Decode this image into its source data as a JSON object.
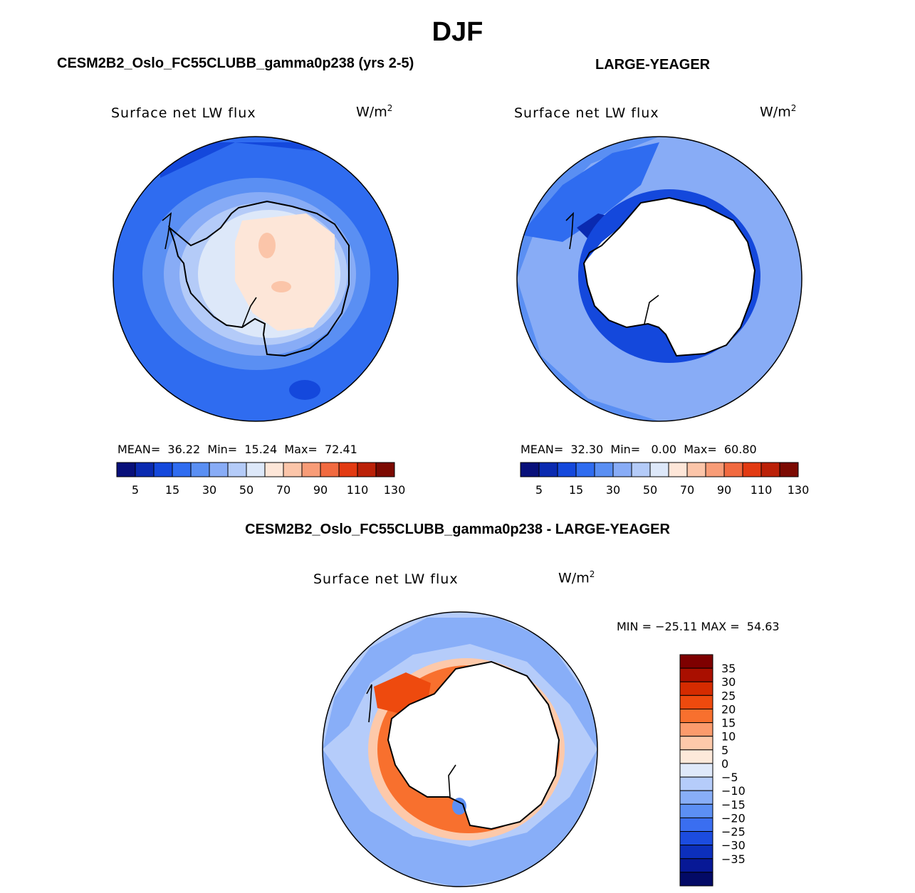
{
  "title": "DJF",
  "panels": {
    "test": {
      "header": "CESM2B2_Oslo_FC55CLUBB_gamma0p238 (yrs 2-5)",
      "variable": "Surface net LW flux",
      "units": "W/m",
      "units_sup": "2",
      "stats": {
        "mean_label": "MEAN=",
        "mean": "36.22",
        "min_label": "Min=",
        "min": "15.24",
        "max_label": "Max=",
        "max": "72.41"
      }
    },
    "obs": {
      "header": "LARGE-YEAGER",
      "variable": "Surface net LW flux",
      "units": "W/m",
      "units_sup": "2",
      "stats": {
        "mean_label": "MEAN=",
        "mean": "32.30",
        "min_label": "Min=",
        "min": "0.00",
        "max_label": "Max=",
        "max": "60.80"
      }
    },
    "diff": {
      "header": "CESM2B2_Oslo_FC55CLUBB_gamma0p238 - LARGE-YEAGER",
      "variable": "Surface net LW flux",
      "units": "W/m",
      "units_sup": "2",
      "stats": {
        "min_label": "MIN =",
        "min": "−25.11",
        "max_label": "MAX =",
        "max": "54.63"
      }
    }
  },
  "colorbar_main": {
    "colors": [
      "#08107a",
      "#0a2ab0",
      "#1448dc",
      "#2f6cf0",
      "#5a8ff3",
      "#88acf6",
      "#b4cbf8",
      "#dde8f9",
      "#fde6d8",
      "#fbc5a9",
      "#f89c77",
      "#f16a40",
      "#e23a12",
      "#bb2108",
      "#7c0a02"
    ],
    "labels": [
      "5",
      "15",
      "30",
      "50",
      "70",
      "90",
      "110",
      "130"
    ]
  },
  "colorbar_diff": {
    "colors": [
      "#7e0000",
      "#a90f00",
      "#d52b00",
      "#ee4a0e",
      "#f8702e",
      "#fb9b6c",
      "#fdc9aa",
      "#fde9da",
      "#dfe9fa",
      "#b5ccfa",
      "#88aef8",
      "#5c8ff4",
      "#3a6ef0",
      "#1c4ce0",
      "#0c2fbc",
      "#071896",
      "#030a66"
    ],
    "labels": [
      "35",
      "30",
      "25",
      "20",
      "15",
      "10",
      "5",
      "0",
      "−5",
      "−10",
      "−15",
      "−20",
      "−25",
      "−30",
      "−35"
    ]
  },
  "legend": {
    "legend_label": "MIN = −25.11 MAX = 54.63"
  }
}
